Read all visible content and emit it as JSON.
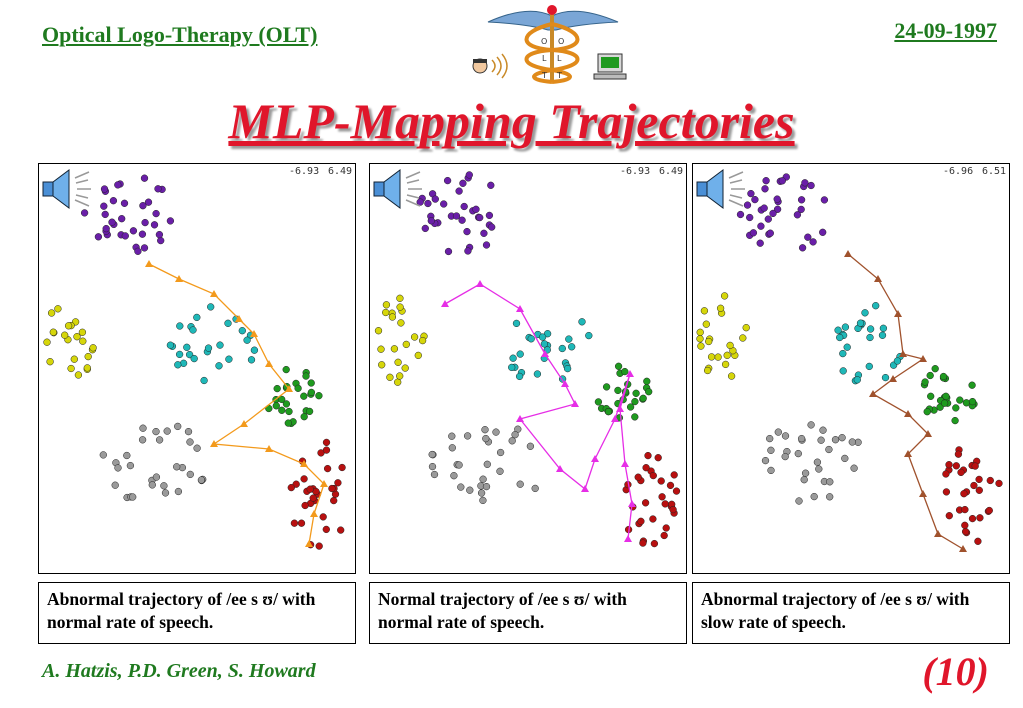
{
  "header": {
    "left": "Optical Logo-Therapy (OLT)",
    "date": "24-09-1997",
    "logo_letters": [
      "O",
      "O",
      "L",
      "L",
      "T",
      "T"
    ]
  },
  "title": "MLP-Mapping Trajectories",
  "panels": [
    {
      "coord_a": "-6.93",
      "coord_b": "6.49",
      "trajectory_color": "#f39a1c",
      "caption": "Abnormal trajectory of /ee s ʊ/ with normal rate of speech."
    },
    {
      "coord_a": "-6.93",
      "coord_b": "6.49",
      "trajectory_color": "#e62ee6",
      "caption": "Normal trajectory of /ee s ʊ/ with normal rate of speech."
    },
    {
      "coord_a": "-6.96",
      "coord_b": "6.51",
      "trajectory_color": "#a0522d",
      "caption": "Abnormal trajectory of /ee s ʊ/ with slow rate of speech."
    }
  ],
  "cluster_colors": {
    "purple": "#6a1fa8",
    "yellow": "#d6d60a",
    "cyan": "#1fb8b8",
    "green": "#1f9a1f",
    "gray": "#9a9a9a",
    "red": "#b81010"
  },
  "footer": {
    "authors": "A. Hatzis, P.D. Green, S. Howard",
    "page": "(10)"
  }
}
